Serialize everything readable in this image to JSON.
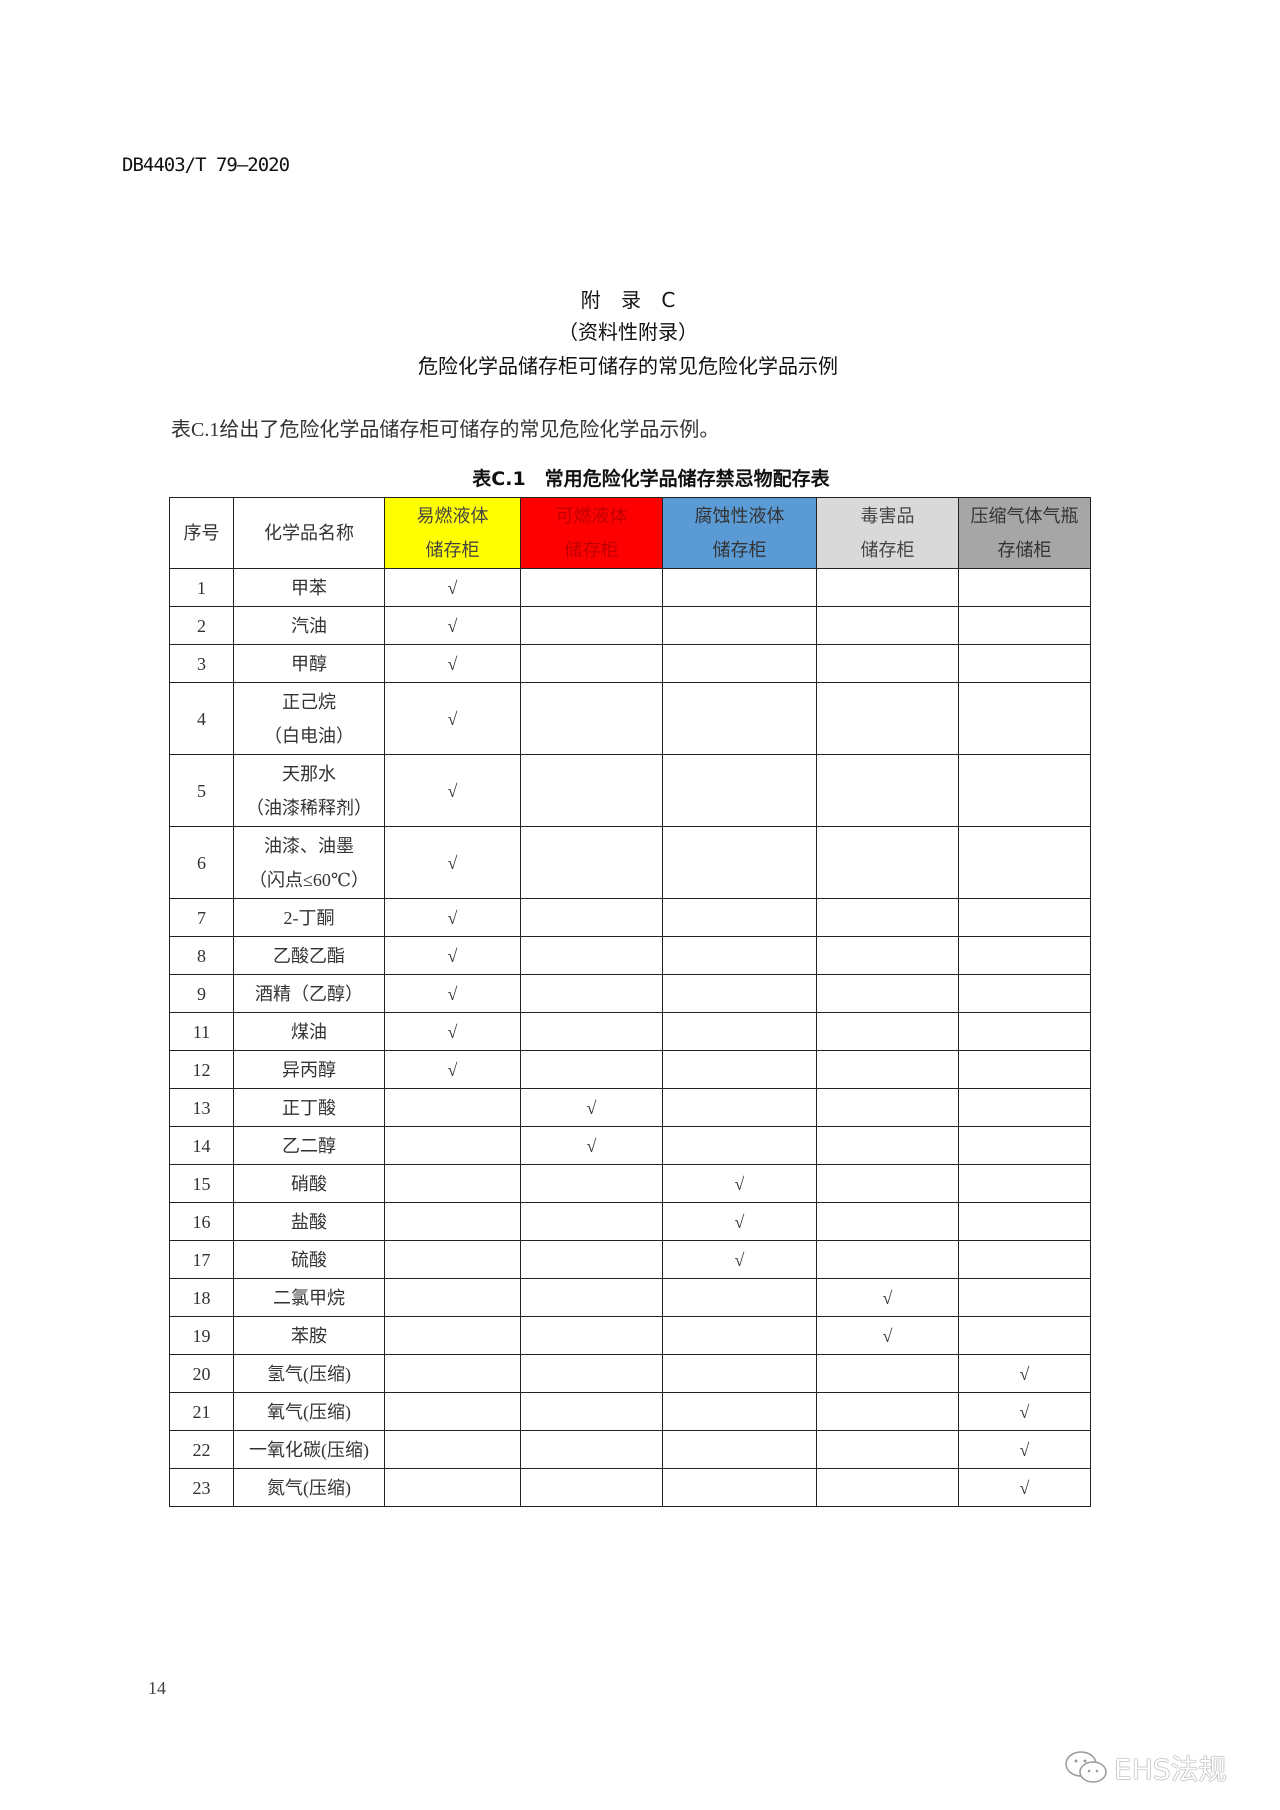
{
  "header": {
    "doc_id": "DB4403/T 79—2020"
  },
  "appendix": {
    "label": "附 录 C",
    "subtitle": "（资料性附录）",
    "title": "危险化学品储存柜可储存的常见危险化学品示例"
  },
  "paragraph": "表C.1给出了危险化学品储存柜可储存的常见危险化学品示例。",
  "table": {
    "caption": "表C.1　常用危险化学品储存禁忌物配存表",
    "check": "√",
    "columns": [
      {
        "label": [
          "序号"
        ]
      },
      {
        "label": [
          "化学品名称"
        ]
      },
      {
        "label": [
          "易燃液体",
          "储存柜"
        ],
        "bg": "#ffff00",
        "fg": "#444444"
      },
      {
        "label": [
          "可燃液体",
          "储存柜"
        ],
        "bg": "#ff0000",
        "fg": "#c00000"
      },
      {
        "label": [
          "腐蚀性液体",
          "储存柜"
        ],
        "bg": "#5b9bd5",
        "fg": "#333333"
      },
      {
        "label": [
          "毒害品",
          "储存柜"
        ],
        "bg": "#d9d9d9",
        "fg": "#444444"
      },
      {
        "label": [
          "压缩气体气瓶",
          "存储柜"
        ],
        "bg": "#a6a6a6",
        "fg": "#333333"
      }
    ],
    "rows": [
      {
        "no": "1",
        "name": [
          "甲苯"
        ],
        "cabinet": 0
      },
      {
        "no": "2",
        "name": [
          "汽油"
        ],
        "cabinet": 0
      },
      {
        "no": "3",
        "name": [
          "甲醇"
        ],
        "cabinet": 0
      },
      {
        "no": "4",
        "name": [
          "正己烷",
          "（白电油）"
        ],
        "cabinet": 0
      },
      {
        "no": "5",
        "name": [
          "天那水",
          "（油漆稀释剂）"
        ],
        "cabinet": 0
      },
      {
        "no": "6",
        "name": [
          "油漆、油墨",
          "（闪点≤60℃）"
        ],
        "cabinet": 0
      },
      {
        "no": "7",
        "name": [
          "2-丁酮"
        ],
        "cabinet": 0
      },
      {
        "no": "8",
        "name": [
          "乙酸乙酯"
        ],
        "cabinet": 0
      },
      {
        "no": "9",
        "name": [
          "酒精（乙醇）"
        ],
        "cabinet": 0
      },
      {
        "no": "11",
        "name": [
          "煤油"
        ],
        "cabinet": 0
      },
      {
        "no": "12",
        "name": [
          "异丙醇"
        ],
        "cabinet": 0
      },
      {
        "no": "13",
        "name": [
          "正丁酸"
        ],
        "cabinet": 1
      },
      {
        "no": "14",
        "name": [
          "乙二醇"
        ],
        "cabinet": 1
      },
      {
        "no": "15",
        "name": [
          "硝酸"
        ],
        "cabinet": 2
      },
      {
        "no": "16",
        "name": [
          "盐酸"
        ],
        "cabinet": 2
      },
      {
        "no": "17",
        "name": [
          "硫酸"
        ],
        "cabinet": 2
      },
      {
        "no": "18",
        "name": [
          "二氯甲烷"
        ],
        "cabinet": 3
      },
      {
        "no": "19",
        "name": [
          "苯胺"
        ],
        "cabinet": 3
      },
      {
        "no": "20",
        "name": [
          "氢气(压缩)"
        ],
        "cabinet": 4
      },
      {
        "no": "21",
        "name": [
          "氧气(压缩)"
        ],
        "cabinet": 4
      },
      {
        "no": "22",
        "name": [
          "一氧化碳(压缩)"
        ],
        "cabinet": 4
      },
      {
        "no": "23",
        "name": [
          "氮气(压缩)"
        ],
        "cabinet": 4
      }
    ]
  },
  "footer": {
    "page_number": "14",
    "watermark": "EHS法规",
    "watermark_icon": "wechat-icon"
  }
}
